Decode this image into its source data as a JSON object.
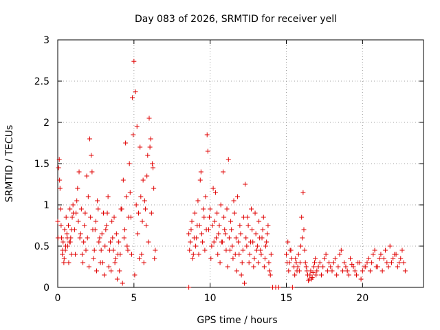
{
  "chart_data": {
    "type": "scatter",
    "title": "Day 083 of 2026, SRMTID for receiver yell",
    "xlabel": "GPS time / hours",
    "ylabel": "SRMTID / TECUs",
    "xlim": [
      0,
      24
    ],
    "ylim": [
      0,
      3
    ],
    "x_ticks": [
      0,
      5,
      10,
      15,
      20
    ],
    "x_tick_labels": [
      "0",
      "5",
      "10",
      "15",
      "20"
    ],
    "y_ticks": [
      0,
      0.5,
      1,
      1.5,
      2,
      2.5,
      3
    ],
    "y_tick_labels": [
      "0",
      "0.5",
      "1",
      "1.5",
      "2",
      "2.5",
      "3"
    ],
    "grid": true,
    "marker": "+",
    "color": "#e00000",
    "series": [
      {
        "name": "SRMTID",
        "segments": [
          {
            "x": [
              0.0,
              0.05,
              0.1,
              0.15,
              0.2,
              0.25,
              0.3,
              0.35,
              0.4,
              0.45,
              0.5,
              0.55,
              0.6,
              0.65,
              0.7,
              0.75,
              0.8,
              0.85,
              0.9,
              0.95,
              1.0,
              1.1,
              1.2,
              1.3,
              1.4,
              1.5,
              1.6,
              1.7,
              1.8,
              1.9,
              2.0,
              2.1,
              2.2,
              2.3,
              2.4,
              2.5,
              2.6,
              2.7,
              2.8,
              2.9,
              3.0,
              3.1,
              3.2,
              3.3,
              3.4,
              3.5,
              3.6,
              3.7,
              3.8,
              3.9,
              4.0,
              4.1,
              4.2,
              4.3,
              4.4,
              4.5,
              4.6,
              4.7,
              4.8,
              4.9,
              5.0,
              5.1,
              5.2,
              5.3,
              5.4,
              5.5,
              5.6,
              5.7,
              5.8,
              5.9,
              6.0,
              6.1,
              6.2,
              6.3,
              6.4
            ],
            "y": [
              0.8,
              1.45,
              1.55,
              1.2,
              0.95,
              0.6,
              0.4,
              0.55,
              0.3,
              0.7,
              0.45,
              0.85,
              0.65,
              0.5,
              0.75,
              0.55,
              0.95,
              0.6,
              0.4,
              0.85,
              1.0,
              0.7,
              0.9,
              1.2,
              1.4,
              0.65,
              0.4,
              0.55,
              0.9,
              1.35,
              1.1,
              1.8,
              1.6,
              0.7,
              0.45,
              0.8,
              1.05,
              0.55,
              0.3,
              0.65,
              0.9,
              0.5,
              0.75,
              1.1,
              0.45,
              0.2,
              0.6,
              0.85,
              0.35,
              0.1,
              0.55,
              0.4,
              0.95,
              1.3,
              0.7,
              1.1,
              0.45,
              1.5,
              0.85,
              2.3,
              2.74,
              2.37,
              1.95,
              0.9,
              1.7,
              0.4,
              1.3,
              1.05,
              0.75,
              1.6,
              2.05,
              1.8,
              1.5,
              1.2,
              0.45
            ]
          },
          {
            "x": [
              0.02,
              0.12,
              0.22,
              0.32,
              0.42,
              0.52,
              0.62,
              0.72,
              0.82,
              0.92,
              1.02,
              1.15,
              1.25,
              1.35,
              1.45,
              1.55,
              1.65,
              1.75,
              1.85,
              1.95,
              2.05,
              2.15,
              2.25,
              2.35,
              2.45,
              2.55,
              2.65,
              2.75,
              2.85,
              2.95,
              3.05,
              3.15,
              3.25,
              3.35,
              3.45,
              3.55,
              3.65,
              3.75,
              3.85,
              3.95,
              4.05,
              4.15,
              4.25,
              4.35,
              4.45,
              4.55,
              4.65,
              4.75,
              4.85,
              4.95,
              5.05,
              5.15,
              5.25,
              5.35,
              5.45,
              5.55,
              5.65,
              5.75,
              5.85,
              5.95,
              6.05,
              6.15,
              6.25,
              6.35
            ],
            "y": [
              0.6,
              1.3,
              0.75,
              0.45,
              0.35,
              0.5,
              0.6,
              0.3,
              0.55,
              0.7,
              0.9,
              0.4,
              1.05,
              0.8,
              0.6,
              0.95,
              0.3,
              0.75,
              0.45,
              0.6,
              0.25,
              0.85,
              1.4,
              0.35,
              0.7,
              0.2,
              0.95,
              0.6,
              0.45,
              0.3,
              0.15,
              0.7,
              0.9,
              0.25,
              0.55,
              0.8,
              0.45,
              0.3,
              0.65,
              0.4,
              0.2,
              0.95,
              0.05,
              0.6,
              1.75,
              0.5,
              0.85,
              1.15,
              0.4,
              1.85,
              0.15,
              1.0,
              0.65,
              0.35,
              1.1,
              0.8,
              0.3,
              0.95,
              1.35,
              0.55,
              1.7,
              0.9,
              1.45,
              0.35
            ]
          },
          {
            "x": [
              8.6,
              8.7,
              8.8,
              8.9,
              9.0,
              9.1,
              9.2,
              9.3,
              9.4,
              9.5,
              9.6,
              9.7,
              9.8,
              9.9,
              10.0,
              10.1,
              10.2,
              10.3,
              10.4,
              10.5,
              10.6,
              10.7,
              10.8,
              10.9,
              11.0,
              11.1,
              11.2,
              11.3,
              11.4,
              11.5,
              11.6,
              11.7,
              11.8,
              11.9,
              12.0,
              12.1,
              12.2,
              12.3,
              12.4,
              12.5,
              12.6,
              12.7,
              12.8,
              12.9,
              13.0,
              13.1,
              13.2,
              13.3,
              13.4,
              13.5,
              13.6,
              13.7,
              13.8,
              13.9,
              14.0
            ],
            "y": [
              0.65,
              0.55,
              0.8,
              0.4,
              0.9,
              0.6,
              1.05,
              0.75,
              1.4,
              0.55,
              0.85,
              1.1,
              1.85,
              0.7,
              0.95,
              0.5,
              1.2,
              0.8,
              0.6,
              0.4,
              0.75,
              1.0,
              0.55,
              0.85,
              0.65,
              0.95,
              1.55,
              0.45,
              0.7,
              0.35,
              0.9,
              0.6,
              1.1,
              0.4,
              0.65,
              0.3,
              0.85,
              1.25,
              0.5,
              0.75,
              0.4,
              0.95,
              0.55,
              0.35,
              0.65,
              0.5,
              0.8,
              0.45,
              0.6,
              0.85,
              0.35,
              0.55,
              0.75,
              0.2,
              0.4
            ]
          },
          {
            "x": [
              8.65,
              8.75,
              8.85,
              8.95,
              9.05,
              9.15,
              9.25,
              9.35,
              9.45,
              9.55,
              9.65,
              9.75,
              9.85,
              9.95,
              10.05,
              10.15,
              10.25,
              10.35,
              10.45,
              10.55,
              10.65,
              10.75,
              10.85,
              10.95,
              11.05,
              11.15,
              11.25,
              11.35,
              11.45,
              11.55,
              11.65,
              11.75,
              11.85,
              11.95,
              12.05,
              12.15,
              12.25,
              12.35,
              12.45,
              12.55,
              12.65,
              12.75,
              12.85,
              12.95,
              13.05,
              13.15,
              13.25,
              13.35,
              13.45,
              13.55,
              13.65,
              13.75,
              13.85,
              13.95
            ],
            "y": [
              0.45,
              0.7,
              0.35,
              0.6,
              0.5,
              0.75,
              0.4,
              1.3,
              0.65,
              0.95,
              0.45,
              0.7,
              1.65,
              0.85,
              0.35,
              0.75,
              0.55,
              1.15,
              0.9,
              0.65,
              0.3,
              0.55,
              1.4,
              0.7,
              0.45,
              0.25,
              0.6,
              0.8,
              0.5,
              1.05,
              0.4,
              0.2,
              0.55,
              0.75,
              0.15,
              0.45,
              0.05,
              0.6,
              0.85,
              0.3,
              0.55,
              0.7,
              0.25,
              0.9,
              0.45,
              0.3,
              0.6,
              0.4,
              0.7,
              0.25,
              0.5,
              0.65,
              0.3,
              0.15
            ]
          },
          {
            "x": [
              15.0,
              15.1,
              15.2,
              15.3,
              15.5,
              15.6,
              15.7,
              15.8,
              15.9,
              16.0,
              16.1,
              16.2,
              16.3,
              16.4,
              16.5,
              16.6,
              16.7,
              16.8,
              16.9,
              17.0,
              17.2,
              17.4,
              17.6,
              17.8,
              18.0,
              18.2,
              18.4,
              18.6,
              18.8,
              19.0,
              19.2,
              19.4,
              19.6,
              19.8,
              20.0,
              20.2,
              20.4,
              20.6,
              20.8,
              21.0,
              21.2,
              21.4,
              21.6,
              21.8,
              22.0,
              22.2,
              22.4,
              22.6,
              22.8
            ],
            "y": [
              0.4,
              0.55,
              0.3,
              0.45,
              0.25,
              0.35,
              0.2,
              0.4,
              0.3,
              0.85,
              1.15,
              0.45,
              0.25,
              0.15,
              0.1,
              0.2,
              0.12,
              0.25,
              0.35,
              0.2,
              0.3,
              0.25,
              0.4,
              0.3,
              0.2,
              0.35,
              0.25,
              0.45,
              0.3,
              0.2,
              0.35,
              0.25,
              0.15,
              0.3,
              0.2,
              0.25,
              0.35,
              0.3,
              0.45,
              0.25,
              0.4,
              0.35,
              0.3,
              0.5,
              0.35,
              0.4,
              0.3,
              0.45,
              0.2
            ]
          },
          {
            "x": [
              15.05,
              15.15,
              15.25,
              15.35,
              15.55,
              15.65,
              15.75,
              15.85,
              15.95,
              16.05,
              16.15,
              16.25,
              16.35,
              16.45,
              16.55,
              16.65,
              16.75,
              16.85,
              16.95,
              17.1,
              17.3,
              17.5,
              17.7,
              17.9,
              18.1,
              18.3,
              18.5,
              18.7,
              18.9,
              19.1,
              19.3,
              19.5,
              19.7,
              19.9,
              20.1,
              20.3,
              20.5,
              20.7,
              20.9,
              21.1,
              21.3,
              21.5,
              21.7,
              21.9,
              22.1,
              22.3,
              22.5,
              22.7
            ],
            "y": [
              0.3,
              0.2,
              0.45,
              0.35,
              0.15,
              0.3,
              0.25,
              0.2,
              0.5,
              0.6,
              0.7,
              0.3,
              0.2,
              0.08,
              0.15,
              0.1,
              0.18,
              0.3,
              0.15,
              0.25,
              0.15,
              0.35,
              0.2,
              0.25,
              0.3,
              0.15,
              0.4,
              0.2,
              0.25,
              0.15,
              0.28,
              0.2,
              0.3,
              0.1,
              0.25,
              0.3,
              0.2,
              0.4,
              0.25,
              0.35,
              0.2,
              0.45,
              0.25,
              0.3,
              0.4,
              0.25,
              0.35,
              0.3
            ]
          },
          {
            "x": [
              8.6,
              14.1,
              14.3,
              14.5,
              15.4
            ],
            "y": [
              0.0,
              0.0,
              0.0,
              0.0,
              0.0
            ]
          }
        ]
      }
    ]
  }
}
